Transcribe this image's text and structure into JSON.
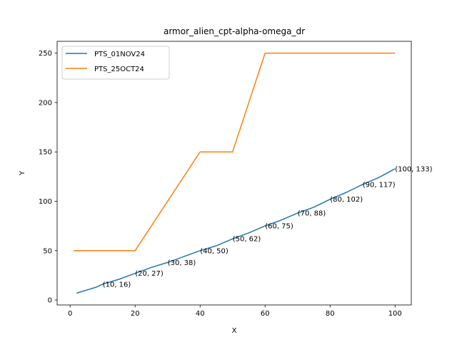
{
  "chart_data": {
    "type": "line",
    "title": "armor_alien_cpt-alpha-omega_dr",
    "xlabel": "X",
    "ylabel": "Y",
    "xlim": [
      -4,
      105
    ],
    "ylim": [
      -5,
      262
    ],
    "xticks": [
      0,
      20,
      40,
      60,
      80,
      100
    ],
    "yticks": [
      0,
      50,
      100,
      150,
      200,
      250
    ],
    "grid": false,
    "legend_position": "upper left",
    "series": [
      {
        "name": "PTS_01NOV24",
        "color": "#1f77b4",
        "x": [
          2,
          8,
          10,
          15,
          20,
          25,
          30,
          35,
          40,
          45,
          50,
          55,
          60,
          65,
          70,
          75,
          80,
          85,
          90,
          95,
          100
        ],
        "y": [
          7,
          13,
          16,
          21,
          27,
          33,
          38,
          44,
          50,
          55,
          62,
          68,
          75,
          81,
          88,
          94,
          102,
          109,
          117,
          124,
          133
        ]
      },
      {
        "name": "PTS_25OCT24",
        "color": "#ff7f0e",
        "x": [
          1,
          20,
          40,
          50,
          60,
          100
        ],
        "y": [
          50,
          50,
          150,
          150,
          250,
          250
        ]
      }
    ],
    "annotations": [
      {
        "text": "(10, 16)",
        "x": 10,
        "y": 16
      },
      {
        "text": "(20, 27)",
        "x": 20,
        "y": 27
      },
      {
        "text": "(30, 38)",
        "x": 30,
        "y": 38
      },
      {
        "text": "(40, 50)",
        "x": 40,
        "y": 50
      },
      {
        "text": "(50, 62)",
        "x": 50,
        "y": 62
      },
      {
        "text": "(60, 75)",
        "x": 60,
        "y": 75
      },
      {
        "text": "(70, 88)",
        "x": 70,
        "y": 88
      },
      {
        "text": "(80, 102)",
        "x": 80,
        "y": 102
      },
      {
        "text": "(90, 117)",
        "x": 90,
        "y": 117
      },
      {
        "text": "(100, 133)",
        "x": 100,
        "y": 133
      }
    ]
  }
}
